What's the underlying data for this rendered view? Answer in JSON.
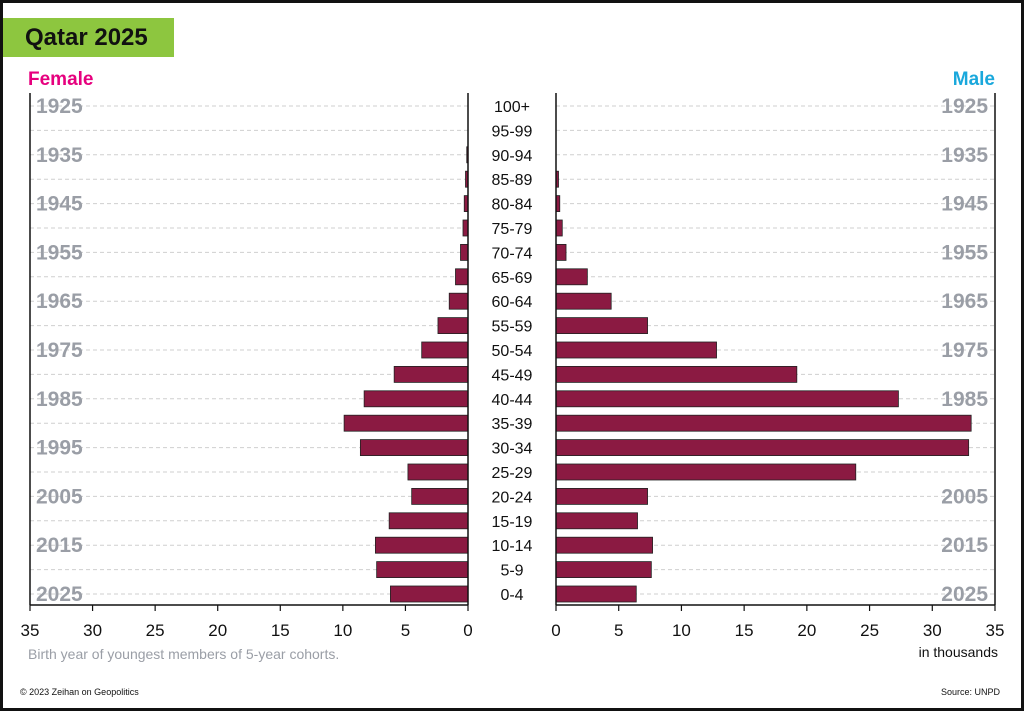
{
  "title": "Qatar 2025",
  "colors": {
    "title_bg": "#8dc63f",
    "female": "#e6007e",
    "male": "#1aa8dc",
    "bar": "#8b1a42",
    "year_label": "#9a9ea6"
  },
  "footer": {
    "copyright": "© 2023 Zeihan on Geopolitics",
    "source": "Source: UNPD"
  },
  "chart_data": {
    "type": "bar",
    "orientation": "horizontal",
    "layout": "population-pyramid",
    "title": "Qatar 2025",
    "left_label": "Female",
    "right_label": "Male",
    "unit_label": "in thousands",
    "x_note": "Birth year of youngest members of 5-year cohorts.",
    "xlim": [
      0,
      35
    ],
    "xticks": [
      0,
      5,
      10,
      15,
      20,
      25,
      30,
      35
    ],
    "categories": [
      "100+",
      "95-99",
      "90-94",
      "85-89",
      "80-84",
      "75-79",
      "70-74",
      "65-69",
      "60-64",
      "55-59",
      "50-54",
      "45-49",
      "40-44",
      "35-39",
      "30-34",
      "25-29",
      "20-24",
      "15-19",
      "10-14",
      "5-9",
      "0-4"
    ],
    "birth_years": [
      "1925",
      "1935",
      "1945",
      "1955",
      "1965",
      "1975",
      "1985",
      "1995",
      "2005",
      "2015",
      "2025"
    ],
    "birth_year_rows": [
      0,
      2,
      4,
      6,
      8,
      10,
      12,
      14,
      16,
      18,
      20
    ],
    "male_birth_year_rows": [
      0,
      2,
      4,
      6,
      8,
      10,
      12,
      16,
      18,
      20
    ],
    "series": [
      {
        "name": "Female",
        "values": [
          0,
          0,
          0.1,
          0.2,
          0.3,
          0.4,
          0.6,
          1.0,
          1.5,
          2.4,
          3.7,
          5.9,
          8.3,
          9.9,
          8.6,
          4.8,
          4.5,
          6.3,
          7.4,
          7.3,
          6.2
        ]
      },
      {
        "name": "Male",
        "values": [
          0,
          0,
          0,
          0.2,
          0.3,
          0.5,
          0.8,
          2.5,
          4.4,
          7.3,
          12.8,
          19.2,
          27.3,
          33.1,
          32.9,
          23.9,
          7.3,
          6.5,
          7.7,
          7.6,
          6.4
        ]
      }
    ]
  }
}
